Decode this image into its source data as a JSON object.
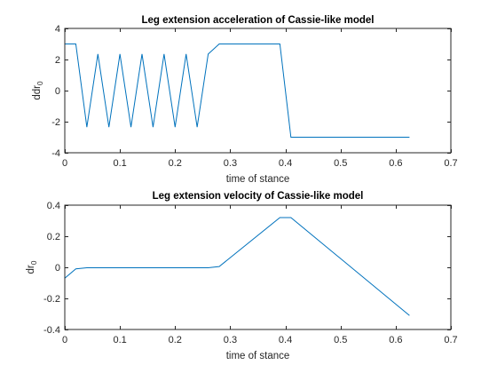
{
  "chart_data": [
    {
      "type": "line",
      "title": "Leg extension acceleration of Cassie-like model",
      "xlabel": "time of stance",
      "ylabel_main": "ddr",
      "ylabel_sub": "0",
      "xlim": [
        0,
        0.7
      ],
      "ylim": [
        -4,
        4
      ],
      "xticks": [
        0,
        0.1,
        0.2,
        0.3,
        0.4,
        0.5,
        0.6,
        0.7
      ],
      "xtick_labels": [
        "0",
        "0.1",
        "0.2",
        "0.3",
        "0.4",
        "0.5",
        "0.6",
        "0.7"
      ],
      "yticks": [
        -4,
        -2,
        0,
        2,
        4
      ],
      "ytick_labels": [
        "-4",
        "-2",
        "0",
        "2",
        "4"
      ],
      "grid": false,
      "series": [
        {
          "color": "#0072BD",
          "x": [
            0,
            0.02,
            0.04,
            0.06,
            0.08,
            0.1,
            0.12,
            0.14,
            0.16,
            0.18,
            0.2,
            0.22,
            0.24,
            0.26,
            0.28,
            0.39,
            0.41,
            0.625
          ],
          "y": [
            3,
            3,
            -2.35,
            2.35,
            -2.35,
            2.35,
            -2.35,
            2.35,
            -2.35,
            2.35,
            -2.35,
            2.35,
            -2.35,
            2.35,
            3,
            3,
            -3,
            -3
          ]
        }
      ]
    },
    {
      "type": "line",
      "title": "Leg extension velocity of Cassie-like model",
      "xlabel": "time of stance",
      "ylabel_main": "dr",
      "ylabel_sub": "0",
      "xlim": [
        0,
        0.7
      ],
      "ylim": [
        -0.4,
        0.4
      ],
      "xticks": [
        0,
        0.1,
        0.2,
        0.3,
        0.4,
        0.5,
        0.6,
        0.7
      ],
      "xtick_labels": [
        "0",
        "0.1",
        "0.2",
        "0.3",
        "0.4",
        "0.5",
        "0.6",
        "0.7"
      ],
      "yticks": [
        -0.4,
        -0.2,
        0,
        0.2,
        0.4
      ],
      "ytick_labels": [
        "-0.4",
        "-0.2",
        "0",
        "0.2",
        "0.4"
      ],
      "grid": false,
      "series": [
        {
          "color": "#0072BD",
          "x": [
            0,
            0.02,
            0.04,
            0.1,
            0.2,
            0.26,
            0.28,
            0.39,
            0.41,
            0.625
          ],
          "y": [
            -0.07,
            -0.01,
            -0.003,
            -0.003,
            -0.003,
            -0.003,
            0.005,
            0.32,
            0.32,
            -0.31
          ]
        }
      ]
    }
  ]
}
